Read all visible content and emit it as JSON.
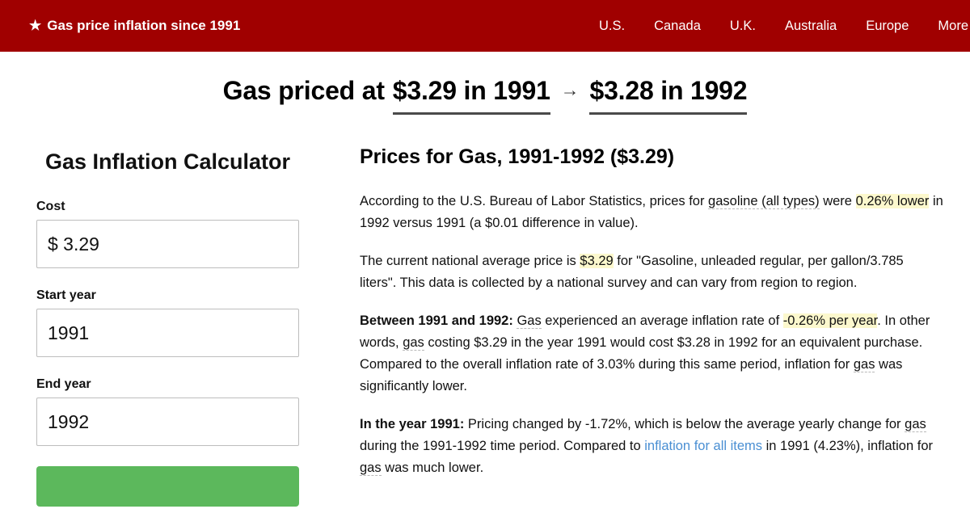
{
  "theme": {
    "navbar_bg": "#a00000",
    "underline": "#4a4a4a",
    "highlight": "#fcf8cd",
    "link": "#4a8fd3",
    "button_green": "#5cb85c"
  },
  "navbar": {
    "star_icon": "★",
    "brand": "Gas price inflation since 1991",
    "items": [
      "U.S.",
      "Canada",
      "U.K.",
      "Australia",
      "Europe",
      "More"
    ]
  },
  "hero": {
    "prefix": "Gas priced at",
    "from": "$3.29 in 1991",
    "arrow": "→",
    "to": "$3.28 in 1992"
  },
  "calculator": {
    "title": "Gas Inflation Calculator",
    "cost_label": "Cost",
    "cost_value": "$ 3.29",
    "start_year_label": "Start year",
    "start_year_value": "1991",
    "end_year_label": "End year",
    "end_year_value": "1992"
  },
  "article": {
    "heading": "Prices for Gas, 1991-1992 ($3.29)",
    "paragraphs": [
      [
        {
          "t": "According to the U.S. Bureau of Labor Statistics, prices for "
        },
        {
          "t": "gasoline (all types)",
          "s": "dot"
        },
        {
          "t": " were "
        },
        {
          "t": "0.26% lower",
          "s": "hl"
        },
        {
          "t": " in 1992 versus 1991 (a $0.01 difference in value)."
        }
      ],
      [
        {
          "t": "The current national average price is "
        },
        {
          "t": "$3.29",
          "s": "hl"
        },
        {
          "t": " for \"Gasoline, unleaded regular, per gallon/3.785 liters\". This data is collected by a national survey and can vary from region to region."
        }
      ],
      [
        {
          "t": "Between 1991 and 1992: ",
          "s": "b"
        },
        {
          "t": "Gas",
          "s": "dot"
        },
        {
          "t": " experienced an average inflation rate of "
        },
        {
          "t": "-0.26% per year",
          "s": "hl"
        },
        {
          "t": ". In other words, "
        },
        {
          "t": "gas",
          "s": "dot"
        },
        {
          "t": " costing $3.29 in the year 1991 would cost $3.28 in 1992 for an equivalent purchase. Compared to the overall inflation rate of 3.03% during this same period, inflation for "
        },
        {
          "t": "gas",
          "s": "dot"
        },
        {
          "t": " was significantly lower."
        }
      ],
      [
        {
          "t": "In the year 1991: ",
          "s": "b"
        },
        {
          "t": "Pricing changed by -1.72%, which is below the average yearly change for "
        },
        {
          "t": "gas",
          "s": "dot"
        },
        {
          "t": " during the 1991-1992 time period. Compared to "
        },
        {
          "t": "inflation for all items",
          "s": "link"
        },
        {
          "t": " in 1991 (4.23%), inflation for "
        },
        {
          "t": "gas",
          "s": "dot"
        },
        {
          "t": " was much lower."
        }
      ]
    ]
  }
}
